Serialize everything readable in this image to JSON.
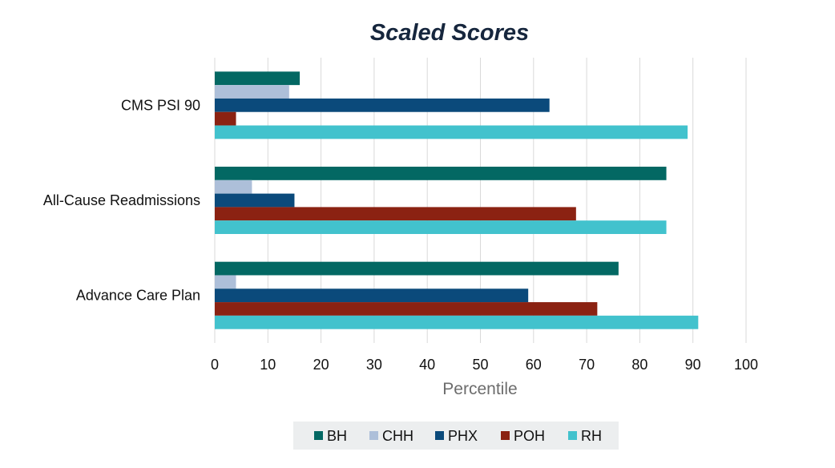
{
  "chart_data": {
    "type": "bar",
    "orientation": "horizontal",
    "title": "Scaled Scores",
    "xlabel": "Percentile",
    "ylabel": "",
    "xlim": [
      0,
      100
    ],
    "xticks": [
      0,
      10,
      20,
      30,
      40,
      50,
      60,
      70,
      80,
      90,
      100
    ],
    "grid": true,
    "legend_position": "bottom",
    "categories": [
      "CMS PSI 90",
      "All-Cause Readmissions",
      "Advance Care Plan"
    ],
    "series": [
      {
        "name": "BH",
        "color": "#036863",
        "values": [
          16,
          85,
          76
        ]
      },
      {
        "name": "CHH",
        "color": "#adbfd9",
        "values": [
          14,
          7,
          4
        ]
      },
      {
        "name": "PHX",
        "color": "#0b4a7b",
        "values": [
          63,
          15,
          59
        ]
      },
      {
        "name": "POH",
        "color": "#8b2212",
        "values": [
          4,
          68,
          72
        ]
      },
      {
        "name": "RH",
        "color": "#42c2cd",
        "values": [
          89,
          85,
          91
        ]
      }
    ]
  }
}
